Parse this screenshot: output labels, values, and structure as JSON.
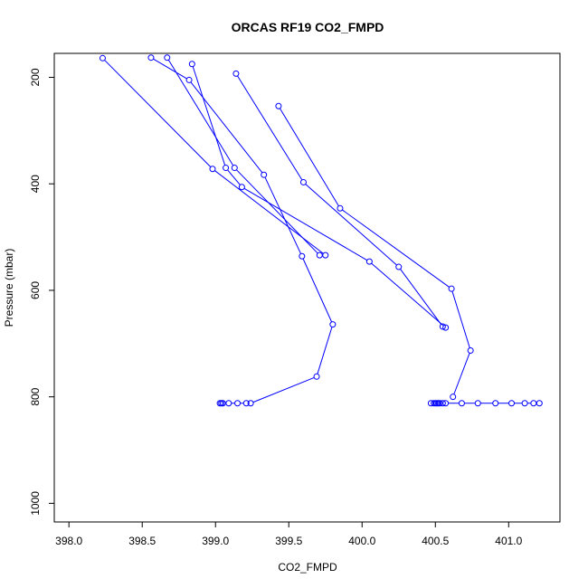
{
  "chart_data": {
    "type": "line",
    "title": "ORCAS RF19 CO2_FMPD",
    "xlabel": "CO2_FMPD",
    "ylabel": "Pressure (mbar)",
    "xlim": [
      397.9,
      401.35
    ],
    "ylim": [
      1035,
      155
    ],
    "y_inverted": true,
    "xticks": [
      398.0,
      398.5,
      399.0,
      399.5,
      400.0,
      400.5,
      401.0
    ],
    "xtick_labels": [
      "398.0",
      "398.5",
      "399.0",
      "399.5",
      "400.0",
      "400.5",
      "401.0"
    ],
    "yticks": [
      200,
      400,
      600,
      800,
      1000
    ],
    "ytick_labels": [
      "200",
      "400",
      "600",
      "800",
      "1000"
    ],
    "grid": false,
    "color": "#0000ff",
    "series": [
      {
        "x": [
          399.24,
          399.69,
          399.8,
          399.59,
          399.33,
          398.82,
          398.56
        ],
        "y": [
          812,
          762,
          664,
          536,
          383,
          205,
          163
        ]
      },
      {
        "x": [
          399.04,
          399.03,
          399.05,
          399.09,
          399.15,
          399.21
        ],
        "y": [
          812,
          812,
          812,
          812,
          812,
          812
        ]
      },
      {
        "x": [
          398.23,
          398.98,
          399.75
        ],
        "y": [
          164,
          372,
          534
        ]
      },
      {
        "x": [
          398.67,
          399.13,
          399.71
        ],
        "y": [
          163,
          370,
          534
        ]
      },
      {
        "x": [
          398.84,
          399.07,
          399.18,
          400.05,
          400.57
        ],
        "y": [
          175,
          370,
          406,
          546,
          670
        ]
      },
      {
        "x": [
          399.14,
          399.6,
          400.25,
          400.55
        ],
        "y": [
          193,
          397,
          556,
          668
        ]
      },
      {
        "x": [
          399.43,
          399.85,
          400.61,
          400.74,
          400.62
        ],
        "y": [
          254,
          446,
          597,
          713,
          800
        ]
      },
      {
        "x": [
          400.47,
          400.49,
          400.5,
          400.51,
          400.52,
          400.53,
          400.55,
          400.57,
          400.68,
          400.79,
          400.91,
          401.02,
          401.11,
          401.17,
          401.21
        ],
        "y": [
          812,
          812,
          812,
          812,
          812,
          812,
          812,
          812,
          812,
          812,
          812,
          812,
          812,
          812,
          812
        ]
      }
    ]
  }
}
